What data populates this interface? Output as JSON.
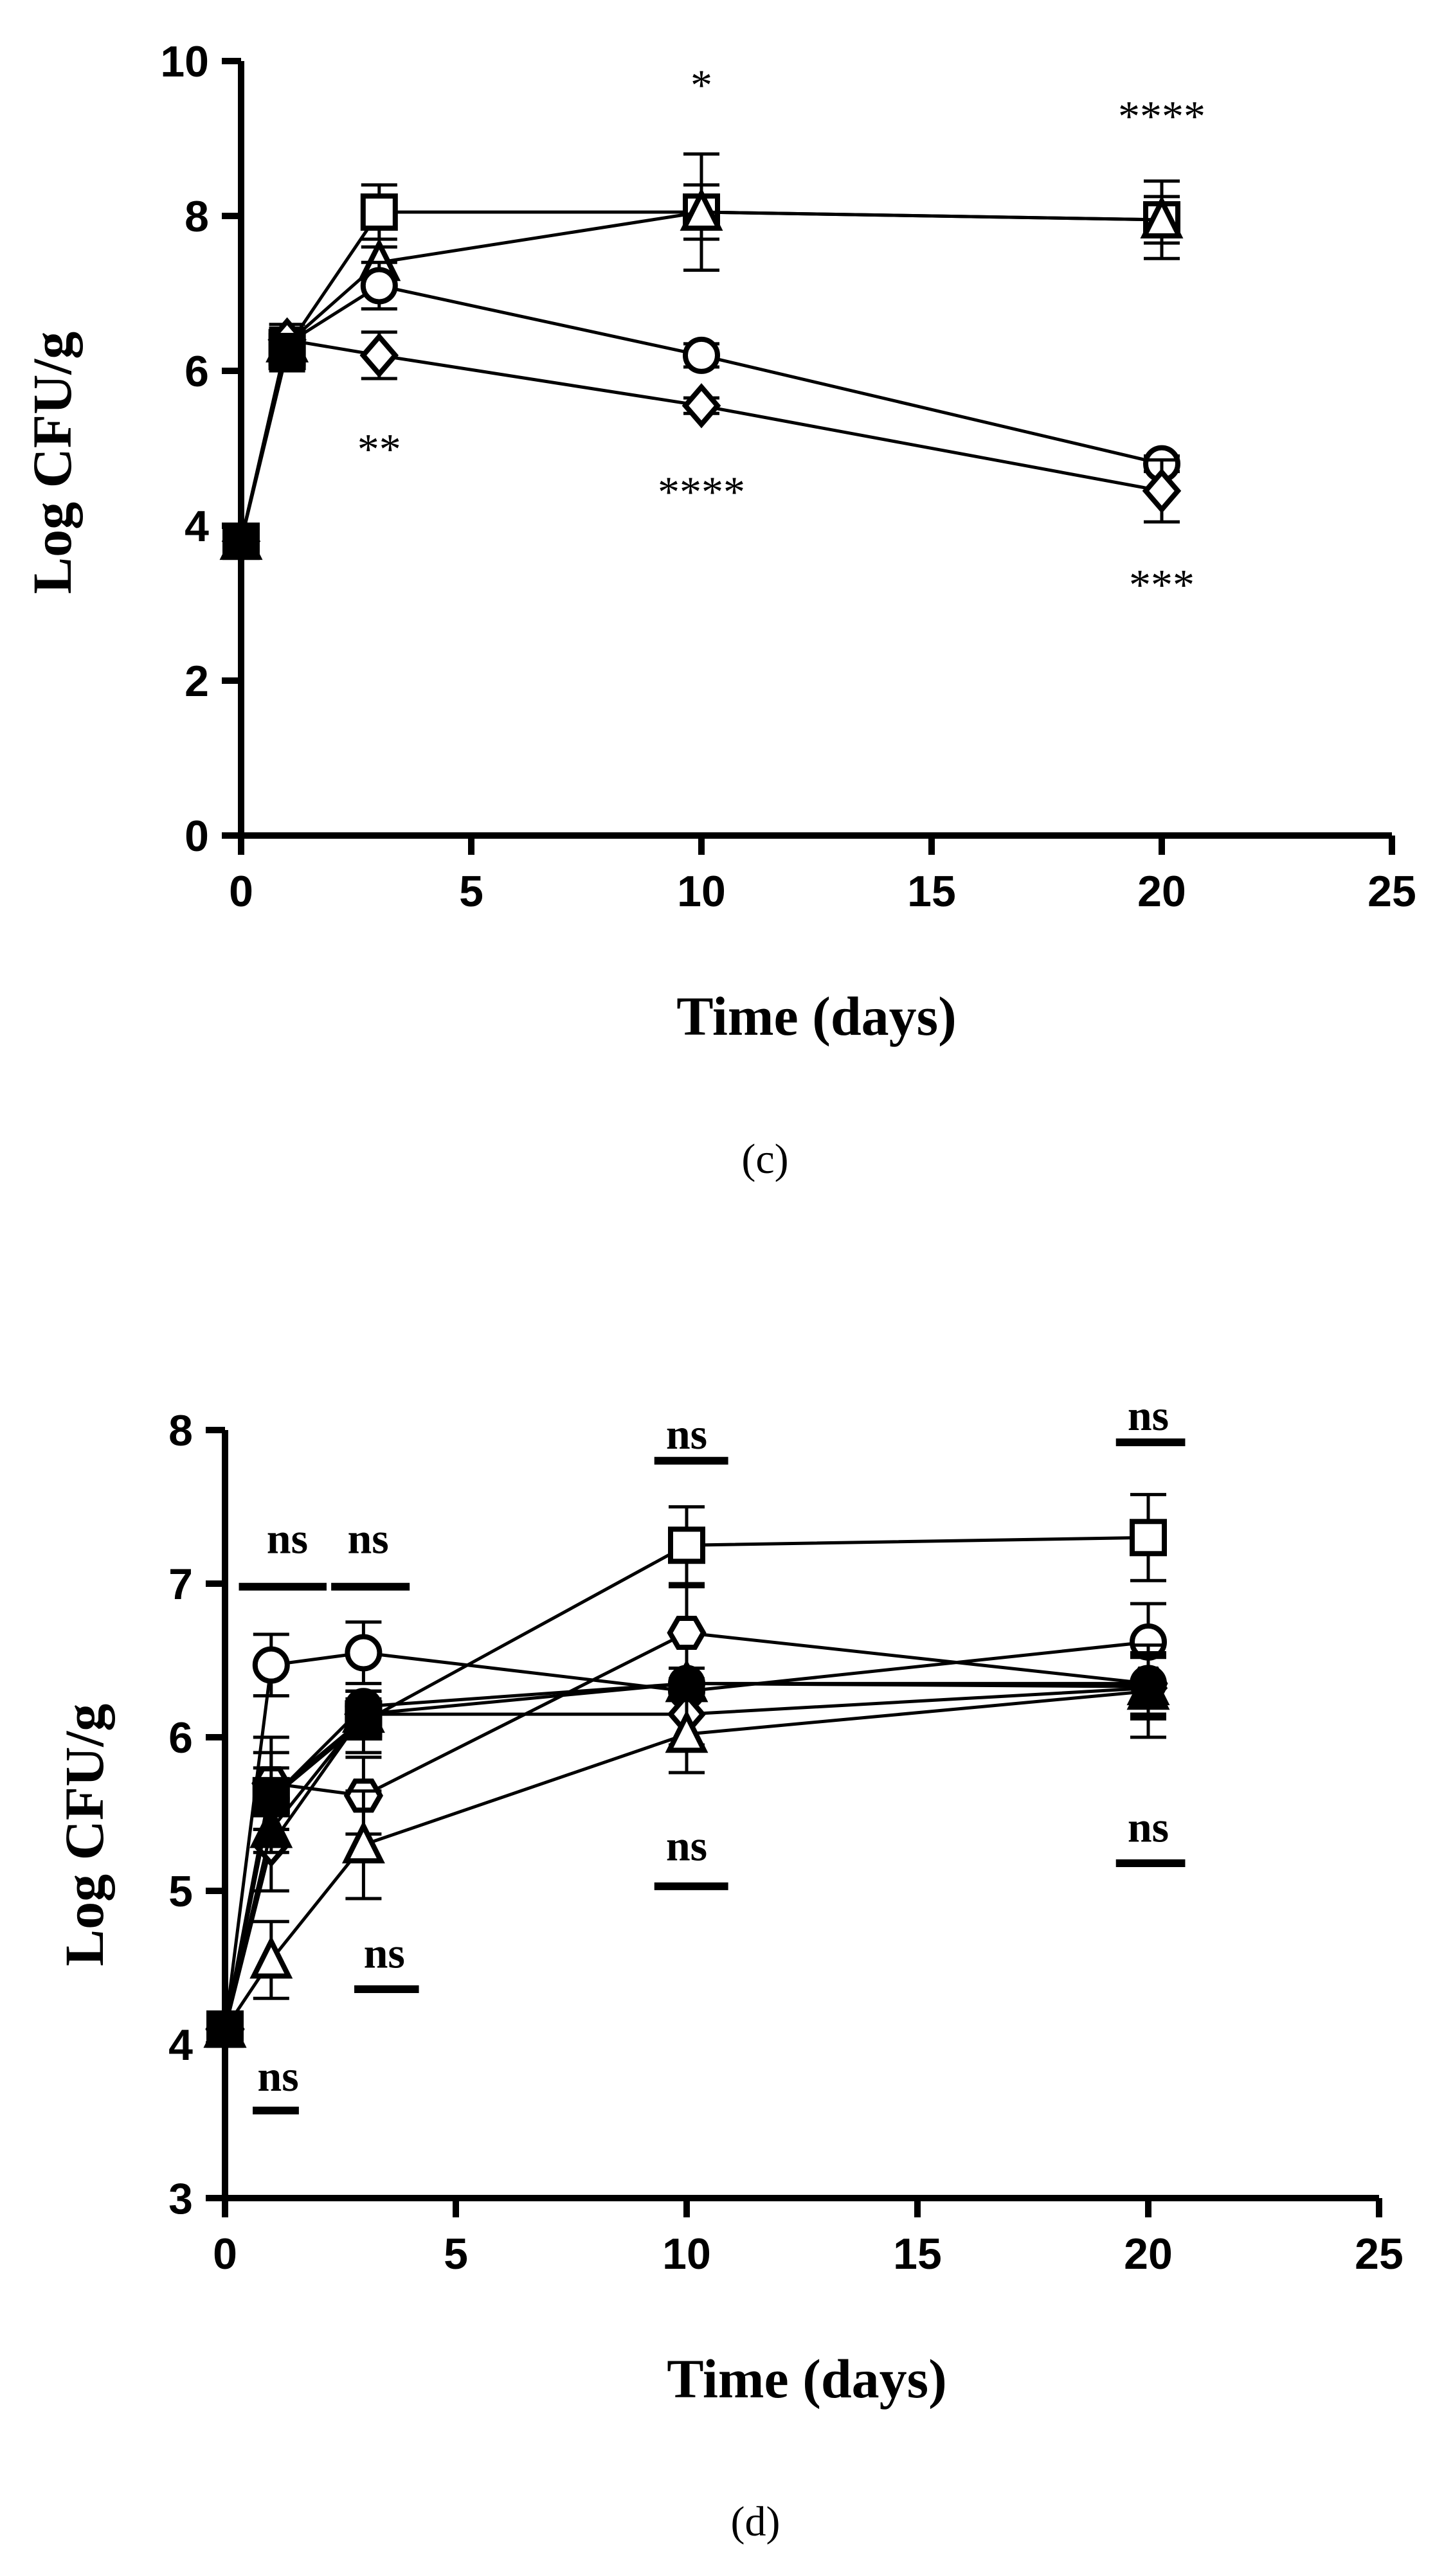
{
  "chart_data": [
    {
      "type": "line",
      "panel_label": "(c)",
      "xlabel": "Time (days)",
      "ylabel": "Log CFU/g",
      "xlim": [
        0,
        25
      ],
      "ylim": [
        0,
        10
      ],
      "xticks": [
        0,
        5,
        10,
        15,
        20,
        25
      ],
      "yticks": [
        0,
        2,
        4,
        6,
        8,
        10
      ],
      "x": [
        0,
        1,
        3,
        10,
        20
      ],
      "series": [
        {
          "name": "square",
          "marker": "square-open",
          "values": [
            3.8,
            6.3,
            8.05,
            8.05,
            7.95
          ],
          "errors": [
            0.05,
            0.3,
            0.35,
            0.35,
            0.5
          ]
        },
        {
          "name": "triangle",
          "marker": "triangle-open",
          "values": [
            3.8,
            6.35,
            7.4,
            8.05,
            7.95
          ],
          "errors": [
            0.05,
            0.2,
            0.2,
            0.75,
            0.3
          ]
        },
        {
          "name": "circle",
          "marker": "circle-open",
          "values": [
            3.8,
            6.35,
            7.1,
            6.2,
            4.8
          ],
          "errors": [
            0.05,
            0.2,
            0.3,
            0.15,
            0.1
          ]
        },
        {
          "name": "diamond",
          "marker": "diamond-open",
          "values": [
            3.8,
            6.4,
            6.2,
            5.55,
            4.45
          ],
          "errors": [
            0.05,
            0.15,
            0.3,
            0.1,
            0.4
          ]
        },
        {
          "name": "filled-square",
          "marker": "square-filled",
          "values": [
            3.8,
            6.25
          ],
          "x": [
            0,
            1
          ],
          "errors": [
            0.05,
            0.1
          ]
        }
      ],
      "annotations": [
        {
          "text": "*",
          "x": 10,
          "y": 9.7
        },
        {
          "text": "****",
          "x": 20,
          "y": 9.3
        },
        {
          "text": "**",
          "x": 3,
          "y": 5.0
        },
        {
          "text": "****",
          "x": 10,
          "y": 4.45
        },
        {
          "text": "***",
          "x": 20,
          "y": 3.25
        }
      ]
    },
    {
      "type": "line",
      "panel_label": "(d)",
      "xlabel": "Time (days)",
      "ylabel": "Log CFU/g",
      "xlim": [
        0,
        25
      ],
      "ylim": [
        3,
        8
      ],
      "xticks": [
        0,
        5,
        10,
        15,
        20,
        25
      ],
      "yticks": [
        3,
        4,
        5,
        6,
        7,
        8
      ],
      "x": [
        0,
        1,
        3,
        10,
        20
      ],
      "series": [
        {
          "name": "square",
          "marker": "square-open",
          "values": [
            4.1,
            5.6,
            6.1,
            7.25,
            7.3
          ],
          "errors": [
            0.05,
            0.2,
            0.2,
            0.25,
            0.28
          ]
        },
        {
          "name": "circle",
          "marker": "circle-open",
          "values": [
            4.1,
            6.47,
            6.55,
            6.3,
            6.62
          ],
          "errors": [
            0.05,
            0.2,
            0.2,
            0.15,
            0.25
          ]
        },
        {
          "name": "hexagon",
          "marker": "hexagon-open",
          "values": [
            4.1,
            5.7,
            5.62,
            6.68,
            6.35
          ],
          "errors": [
            0.05,
            0.3,
            0.25,
            0.3,
            0.2
          ]
        },
        {
          "name": "diamond",
          "marker": "diamond-open",
          "values": [
            4.1,
            5.3,
            6.15,
            6.15,
            6.32
          ],
          "errors": [
            0.05,
            0.3,
            0.15,
            0.2,
            0.2
          ]
        },
        {
          "name": "triangle",
          "marker": "triangle-open",
          "values": [
            4.1,
            4.55,
            5.3,
            6.02,
            6.3
          ],
          "errors": [
            0.05,
            0.25,
            0.35,
            0.25,
            0.3
          ]
        },
        {
          "name": "filled-circle",
          "marker": "circle-filled",
          "values": [
            4.1,
            5.6,
            6.2,
            6.35,
            6.35
          ],
          "errors": [
            0.05,
            0.3,
            0.1,
            0.1,
            0.2
          ]
        },
        {
          "name": "filled-triangle",
          "marker": "triangle-filled",
          "values": [
            4.1,
            5.4,
            6.15,
            6.35,
            6.33
          ],
          "errors": [
            0.05,
            0.15,
            0.1,
            0.1,
            0.2
          ]
        },
        {
          "name": "filled-square",
          "marker": "square-filled",
          "values": [
            4.1,
            5.62,
            6.12
          ],
          "x": [
            0,
            1,
            3
          ],
          "errors": [
            0.05,
            0.1,
            0.1
          ]
        }
      ],
      "annotations": [
        {
          "text": "ns",
          "x": 1.35,
          "y": 7.3,
          "bar": [
            0.3,
            2.2,
            6.98
          ]
        },
        {
          "text": "ns",
          "x": 3.1,
          "y": 7.3,
          "bar": [
            2.3,
            4.0,
            6.98
          ]
        },
        {
          "text": "ns",
          "x": 10,
          "y": 7.98,
          "bar": [
            9.3,
            10.9,
            7.8
          ]
        },
        {
          "text": "ns",
          "x": 20,
          "y": 8.1,
          "bar": [
            19.3,
            20.8,
            7.92
          ]
        },
        {
          "text": "ns",
          "x": 10,
          "y": 5.3,
          "bar": [
            9.3,
            10.9,
            5.03
          ]
        },
        {
          "text": "ns",
          "x": 20,
          "y": 5.42,
          "bar": [
            19.3,
            20.8,
            5.18
          ]
        },
        {
          "text": "ns",
          "x": 3.45,
          "y": 4.6,
          "bar": [
            2.8,
            4.2,
            4.36
          ]
        },
        {
          "text": "ns",
          "x": 1.15,
          "y": 3.8,
          "bar": [
            0.6,
            1.6,
            3.57
          ]
        }
      ]
    }
  ]
}
